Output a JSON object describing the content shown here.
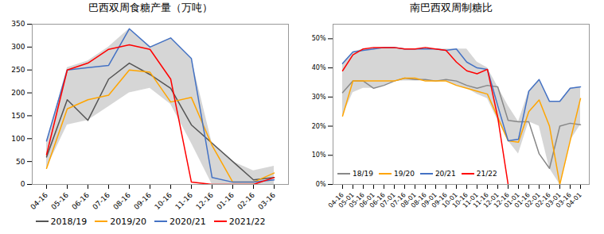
{
  "chart_data": [
    {
      "type": "line",
      "title": "巴西双周食糖产量（万吨）",
      "categories": [
        "04-16",
        "05-16",
        "06-16",
        "07-16",
        "08-16",
        "09-16",
        "10-16",
        "11-16",
        "12-16",
        "01-16",
        "02-16",
        "03-16"
      ],
      "series": [
        {
          "name": "2018/19",
          "color": "#555555",
          "values": [
            60,
            185,
            140,
            230,
            265,
            240,
            210,
            130,
            90,
            50,
            10,
            15
          ]
        },
        {
          "name": "2019/20",
          "color": "#FFA500",
          "values": [
            35,
            165,
            185,
            195,
            250,
            245,
            180,
            190,
            85,
            5,
            5,
            25
          ]
        },
        {
          "name": "2020/21",
          "color": "#4472C4",
          "values": [
            95,
            250,
            255,
            260,
            340,
            300,
            320,
            275,
            15,
            5,
            5,
            10
          ]
        },
        {
          "name": "2021/22",
          "color": "#FF0000",
          "values": [
            65,
            250,
            265,
            295,
            305,
            295,
            230,
            5,
            0,
            0,
            0,
            15
          ]
        }
      ],
      "band": {
        "upper": [
          90,
          255,
          270,
          300,
          340,
          300,
          320,
          275,
          90,
          50,
          30,
          40
        ],
        "lower": [
          35,
          130,
          140,
          170,
          200,
          210,
          175,
          90,
          0,
          0,
          0,
          0
        ],
        "color": "#C8C8C8"
      },
      "ylim": [
        0,
        350
      ],
      "yticks": [
        0,
        50,
        100,
        150,
        200,
        250,
        300,
        350
      ],
      "grid": false,
      "legend": "bottom"
    },
    {
      "type": "line",
      "title": "南巴西双周制糖比",
      "categories": [
        "04-16",
        "05-01",
        "05-16",
        "06-01",
        "06-16",
        "07-01",
        "07-16",
        "08-01",
        "08-16",
        "09-01",
        "09-16",
        "10-01",
        "10-16",
        "11-01",
        "11-16",
        "12-01",
        "12-16",
        "01-01",
        "01-16",
        "02-01",
        "02-16",
        "03-01",
        "03-16",
        "04-01"
      ],
      "series": [
        {
          "name": "18/19",
          "color": "#888888",
          "values": [
            0.315,
            0.355,
            0.355,
            0.33,
            0.34,
            0.355,
            0.365,
            0.36,
            0.36,
            0.355,
            0.36,
            0.355,
            0.34,
            0.33,
            0.34,
            0.335,
            0.22,
            0.215,
            0.215,
            0.105,
            0.055,
            0.2,
            0.21,
            0.205
          ]
        },
        {
          "name": "19/20",
          "color": "#FFA500",
          "values": [
            0.235,
            0.355,
            0.355,
            0.355,
            0.355,
            0.355,
            0.365,
            0.365,
            0.355,
            0.355,
            0.355,
            0.34,
            0.33,
            0.32,
            0.31,
            0.23,
            0.15,
            0.145,
            0.25,
            0.29,
            0.2,
            0.0,
            0.15,
            0.295
          ]
        },
        {
          "name": "20/21",
          "color": "#4472C4",
          "values": [
            0.415,
            0.455,
            0.46,
            0.465,
            0.47,
            0.47,
            0.465,
            0.465,
            0.465,
            0.465,
            0.46,
            0.465,
            0.42,
            0.4,
            0.395,
            0.27,
            0.15,
            0.155,
            0.32,
            0.36,
            0.285,
            0.285,
            0.33,
            0.335
          ]
        },
        {
          "name": "21/22",
          "color": "#FF0000",
          "values": [
            0.39,
            0.445,
            0.465,
            0.47,
            0.47,
            0.47,
            0.465,
            0.465,
            0.47,
            0.465,
            0.46,
            0.42,
            0.39,
            0.38,
            0.395,
            0.23,
            0.0,
            null,
            null,
            null,
            null,
            null,
            null,
            null
          ]
        }
      ],
      "band": {
        "upper": [
          0.415,
          0.455,
          0.465,
          0.465,
          0.47,
          0.47,
          0.465,
          0.465,
          0.465,
          0.465,
          0.465,
          0.465,
          0.465,
          0.42,
          0.4,
          0.335,
          0.27,
          0.215,
          0.32,
          0.36,
          0.285,
          0.285,
          0.33,
          0.335
        ],
        "lower": [
          0.235,
          0.315,
          0.33,
          0.33,
          0.34,
          0.355,
          0.355,
          0.355,
          0.355,
          0.355,
          0.355,
          0.34,
          0.33,
          0.31,
          0.295,
          0.22,
          0.15,
          0.105,
          0.215,
          0.2,
          0.055,
          0.0,
          0.15,
          0.205
        ],
        "color": "#C8C8C8"
      },
      "ylim": [
        0,
        0.55
      ],
      "yticks": [
        {
          "value": 0,
          "label": "0%"
        },
        {
          "value": 0.1,
          "label": "10%"
        },
        {
          "value": 0.2,
          "label": "20%"
        },
        {
          "value": 0.3,
          "label": "30%"
        },
        {
          "value": 0.4,
          "label": "40%"
        },
        {
          "value": 0.5,
          "label": "50%"
        }
      ],
      "grid": false,
      "legend": "lower left"
    }
  ]
}
